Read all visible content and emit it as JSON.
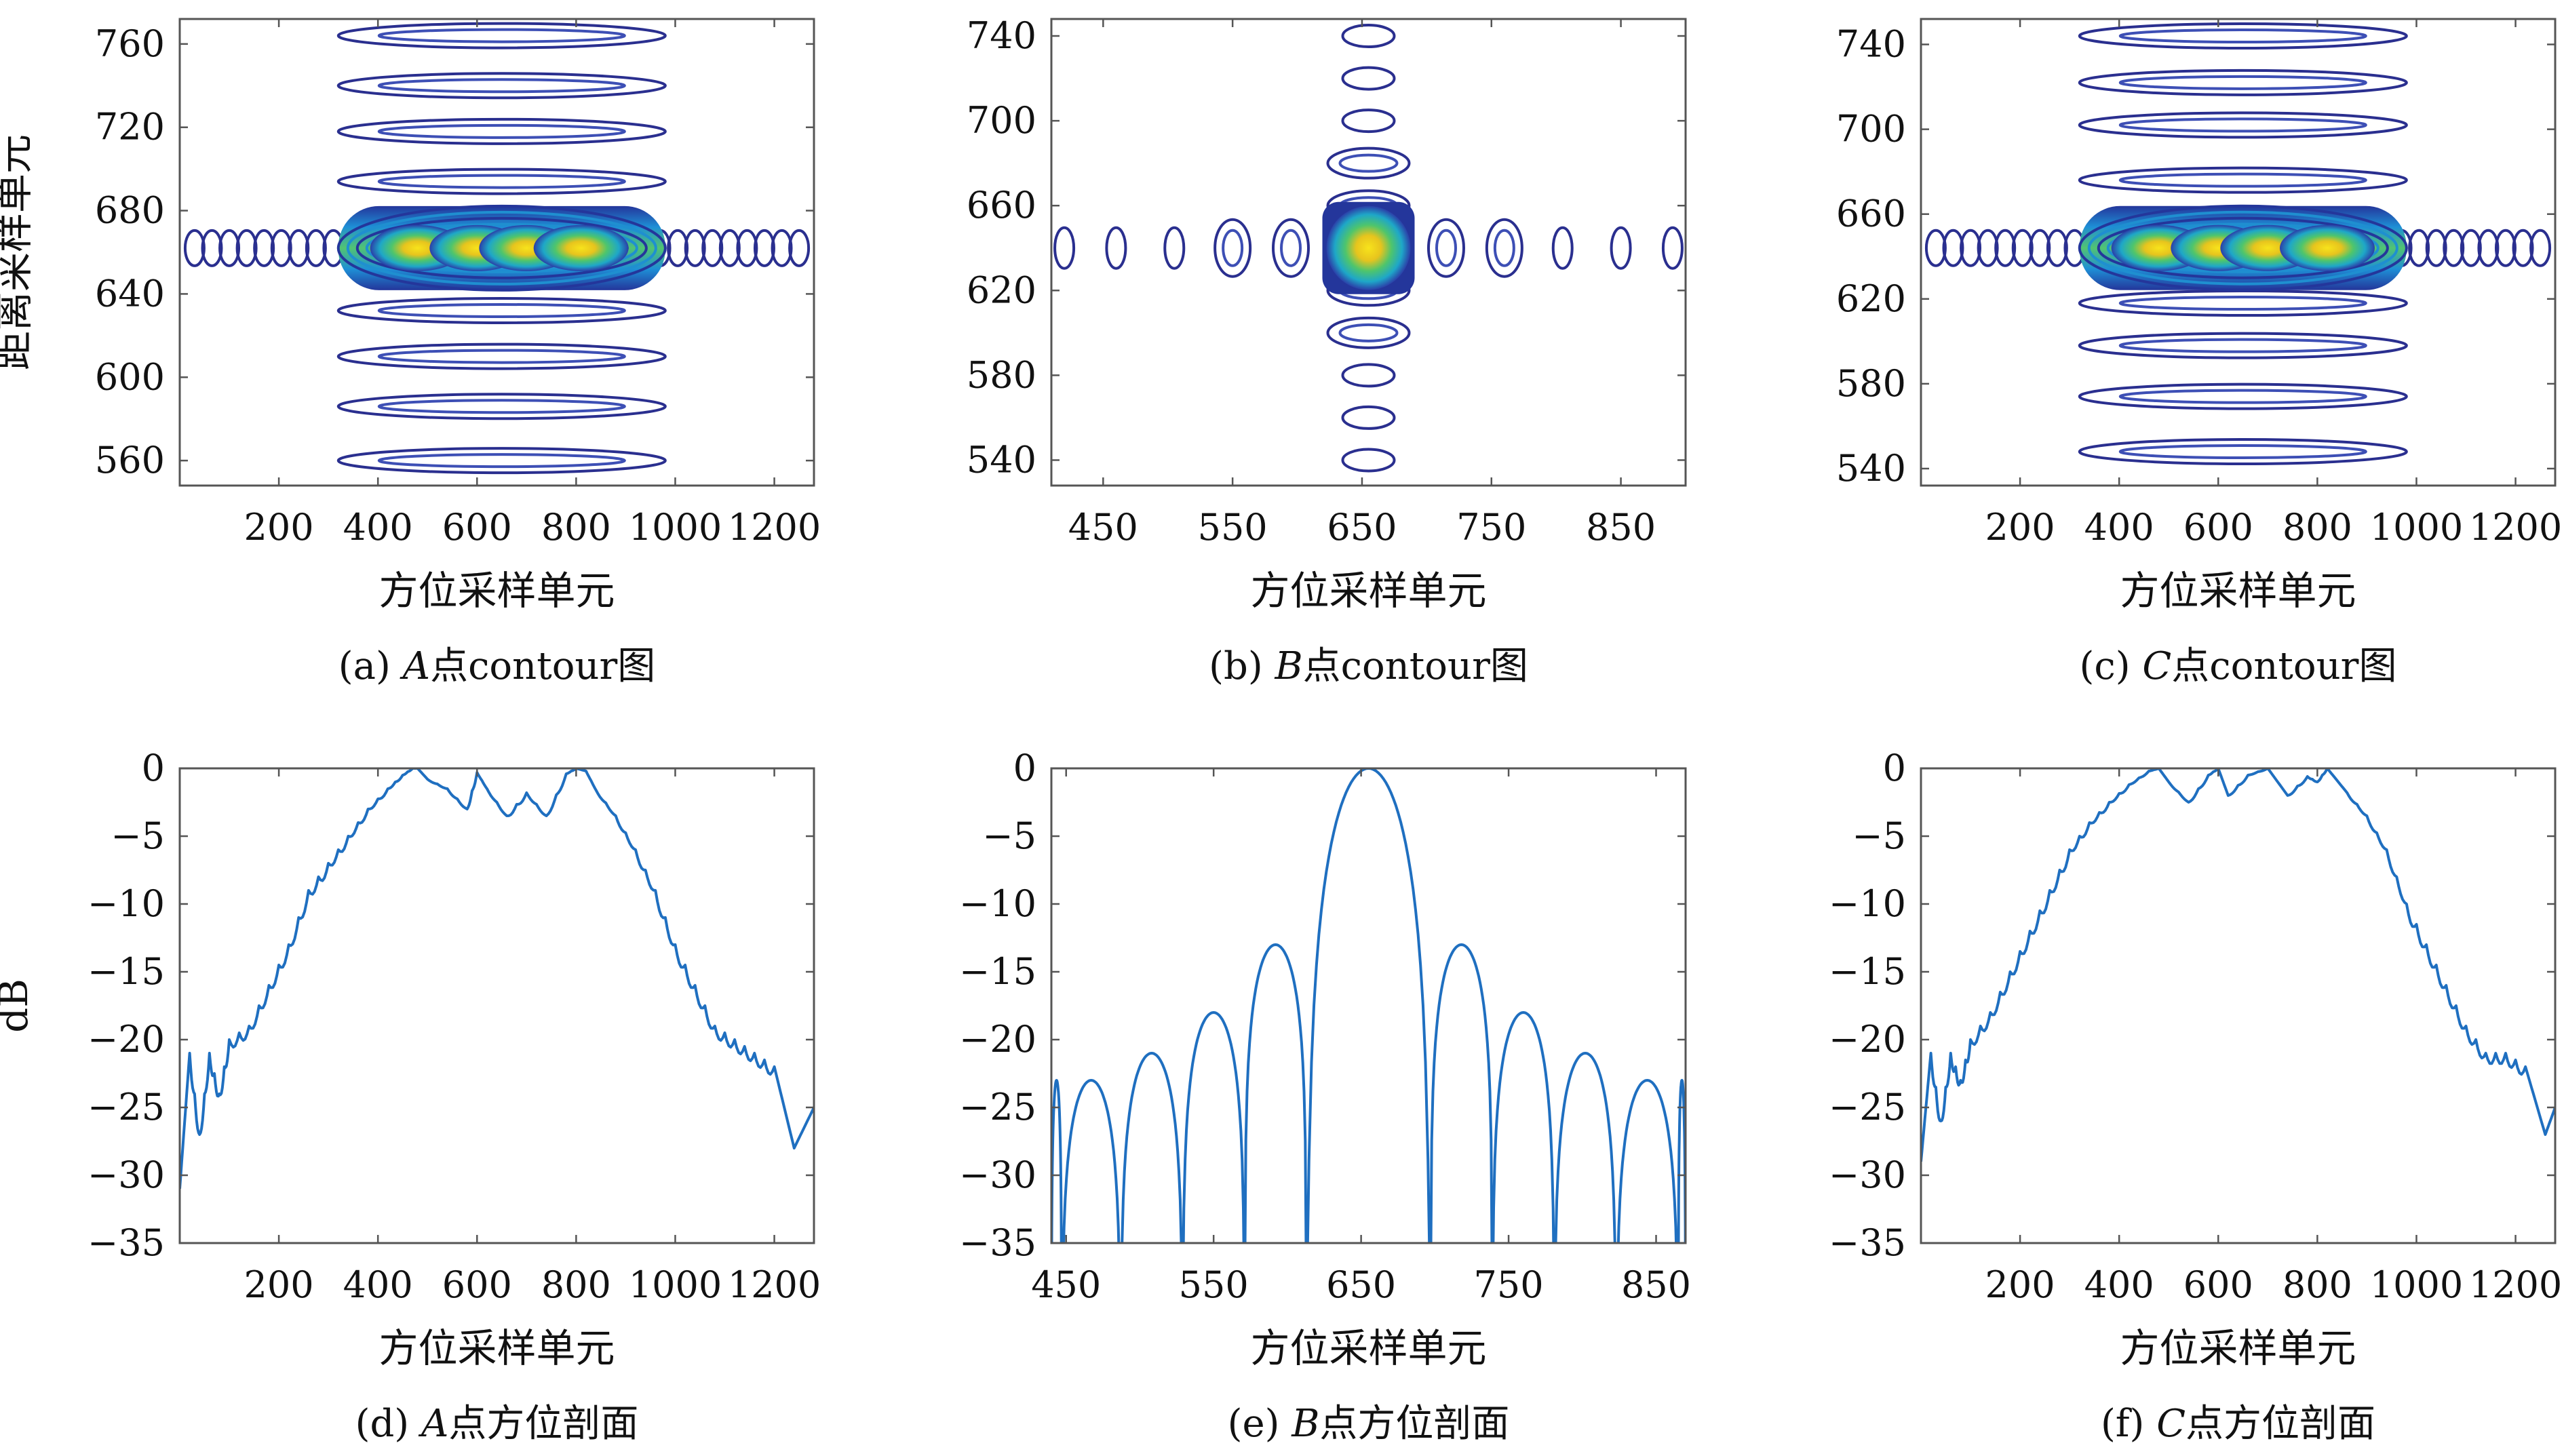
{
  "chart_data": [
    {
      "id": "a",
      "type": "contour",
      "caption": {
        "prefix": "(a) ",
        "point": "A",
        "suffix": "点contour图"
      },
      "xlabel": "方位采样单元",
      "ylabel": "距离采样单元",
      "xlim": [
        0,
        1280
      ],
      "ylim": [
        548,
        772
      ],
      "xticks": [
        200,
        400,
        600,
        800,
        1000,
        1200
      ],
      "yticks": [
        560,
        600,
        640,
        680,
        720,
        760
      ],
      "center": [
        650,
        662
      ],
      "mainlobe_x": [
        320,
        980
      ],
      "peaks_x": [
        480,
        600,
        700,
        810
      ],
      "sidelobe_rows": [
        764,
        740,
        718,
        694,
        632,
        610,
        586,
        560
      ],
      "sidelobe_x": [
        320,
        980
      ]
    },
    {
      "id": "b",
      "type": "contour",
      "caption": {
        "prefix": "(b)  ",
        "point": "B",
        "suffix": "点contour图"
      },
      "xlabel": "方位采样单元",
      "ylabel": "",
      "xlim": [
        410,
        900
      ],
      "ylim": [
        528,
        748
      ],
      "xticks": [
        450,
        550,
        650,
        750,
        850
      ],
      "yticks": [
        540,
        580,
        620,
        660,
        700,
        740
      ],
      "center": [
        655,
        640
      ],
      "sidelobe_x": [
        420,
        460,
        505,
        550,
        595,
        715,
        760,
        805,
        850,
        890
      ],
      "sidelobe_y": [
        540,
        560,
        580,
        600,
        620,
        660,
        680,
        700,
        720,
        740
      ]
    },
    {
      "id": "c",
      "type": "contour",
      "caption": {
        "prefix": "(c) ",
        "point": "C",
        "suffix": "点contour图"
      },
      "xlabel": "方位采样单元",
      "ylabel": "",
      "xlim": [
        0,
        1280
      ],
      "ylim": [
        532,
        752
      ],
      "xticks": [
        200,
        400,
        600,
        800,
        1000,
        1200
      ],
      "yticks": [
        540,
        580,
        620,
        660,
        700,
        740
      ],
      "center": [
        650,
        644
      ],
      "mainlobe_x": [
        320,
        980
      ],
      "peaks_x": [
        480,
        600,
        700,
        820
      ],
      "sidelobe_rows": [
        744,
        722,
        702,
        676,
        618,
        598,
        574,
        548
      ],
      "sidelobe_x": [
        320,
        980
      ]
    },
    {
      "id": "d",
      "type": "line",
      "caption": {
        "prefix": "(d) ",
        "point": "A",
        "suffix": "点方位剖面"
      },
      "xlabel": "方位采样单元",
      "ylabel": "dB",
      "xlim": [
        0,
        1280
      ],
      "ylim": [
        -35,
        0
      ],
      "xticks": [
        200,
        400,
        600,
        800,
        1000,
        1200
      ],
      "yticks": [
        0,
        -5,
        -10,
        -15,
        -20,
        -25,
        -30,
        -35
      ],
      "series": [
        {
          "x": [
            0,
            20,
            40,
            60,
            80,
            100,
            140,
            180,
            220,
            260,
            300,
            340,
            380,
            420,
            450,
            470,
            480,
            500,
            540,
            580,
            600,
            620,
            660,
            700,
            740,
            780,
            800,
            820,
            840,
            880,
            920,
            960,
            1000,
            1040,
            1080,
            1120,
            1160,
            1200,
            1240,
            1280
          ],
          "y": [
            -31,
            -21,
            -27,
            -21,
            -24,
            -20,
            -19,
            -16,
            -13,
            -9,
            -7,
            -5,
            -3,
            -1.5,
            -0.5,
            0,
            0,
            -0.8,
            -1.5,
            -3,
            -0.3,
            -1.5,
            -3.5,
            -1.8,
            -3.5,
            -0.4,
            0,
            -0.2,
            -1.6,
            -3.5,
            -6,
            -9,
            -13,
            -16,
            -19,
            -20,
            -21,
            -22,
            -28,
            -25
          ]
        }
      ]
    },
    {
      "id": "e",
      "type": "line",
      "caption": {
        "prefix": "(e) ",
        "point": "B",
        "suffix": "点方位剖面"
      },
      "xlabel": "方位采样单元",
      "ylabel": "",
      "xlim": [
        440,
        870
      ],
      "ylim": [
        -35,
        0
      ],
      "xticks": [
        450,
        550,
        650,
        750,
        850
      ],
      "yticks": [
        0,
        -5,
        -10,
        -15,
        -20,
        -25,
        -30,
        -35
      ],
      "series": [
        {
          "peak": 655,
          "lobe_width": 40,
          "nulls": [
            447,
            487,
            529,
            571,
            613,
            697,
            739,
            781,
            823,
            865
          ],
          "sidelobe_peaks_db": [
            -23,
            -21,
            -18,
            -13,
            0,
            -13,
            -18,
            -21,
            -23
          ]
        }
      ]
    },
    {
      "id": "f",
      "type": "line",
      "caption": {
        "prefix": "(f) ",
        "point": "C",
        "suffix": "点方位剖面"
      },
      "xlabel": "方位采样单元",
      "ylabel": "",
      "xlim": [
        0,
        1280
      ],
      "ylim": [
        -35,
        0
      ],
      "xticks": [
        200,
        400,
        600,
        800,
        1000,
        1200
      ],
      "yticks": [
        0,
        -5,
        -10,
        -15,
        -20,
        -25,
        -30,
        -35
      ],
      "series": [
        {
          "x": [
            0,
            20,
            40,
            60,
            80,
            100,
            140,
            180,
            220,
            260,
            300,
            340,
            380,
            420,
            460,
            480,
            500,
            540,
            580,
            600,
            620,
            660,
            700,
            740,
            780,
            800,
            820,
            860,
            900,
            940,
            980,
            1020,
            1060,
            1100,
            1140,
            1180,
            1220,
            1260,
            1280
          ],
          "y": [
            -29,
            -21,
            -26,
            -21,
            -23,
            -20,
            -18,
            -15,
            -12,
            -9,
            -6,
            -4,
            -2.5,
            -1.2,
            -0.2,
            0,
            -1,
            -2.5,
            -0.5,
            0,
            -2,
            -0.5,
            0,
            -2,
            -0.6,
            -1,
            0,
            -1.8,
            -3.5,
            -6,
            -10,
            -13,
            -16,
            -19,
            -21,
            -21,
            -22,
            -27,
            -25
          ]
        }
      ]
    }
  ]
}
